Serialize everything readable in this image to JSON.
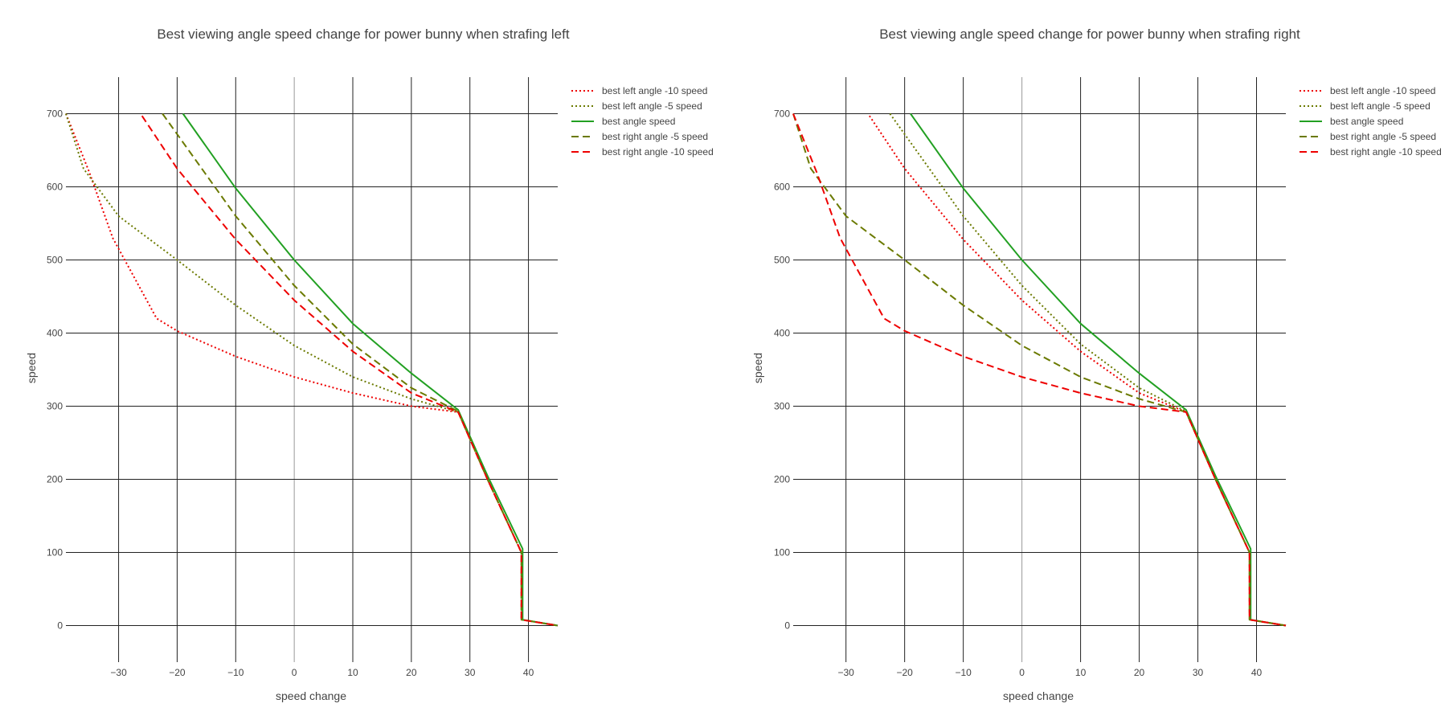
{
  "chart_data": [
    {
      "type": "line",
      "title": "Best viewing angle speed change for power bunny when strafing left",
      "xlabel": "speed change",
      "ylabel": "speed",
      "xlim": [
        -39,
        45
      ],
      "ylim": [
        -50,
        750
      ],
      "xticks": [
        -30,
        -20,
        -10,
        0,
        10,
        20,
        30,
        40
      ],
      "xtick_labels": [
        "−30",
        "−20",
        "−10",
        "0",
        "10",
        "20",
        "30",
        "40"
      ],
      "yticks": [
        0,
        100,
        200,
        300,
        400,
        500,
        600,
        700
      ],
      "ytick_labels": [
        "0",
        "100",
        "200",
        "300",
        "400",
        "500",
        "600",
        "700"
      ],
      "grid": true,
      "legend_position": "top-right",
      "series": [
        {
          "name": "best left angle -10 speed",
          "color": "#ee0000",
          "dash": "dot",
          "points": [
            [
              -39,
              700
            ],
            [
              -35,
              620
            ],
            [
              -31,
              530
            ],
            [
              -23.5,
              420
            ],
            [
              -20,
              403
            ],
            [
              -10,
              368
            ],
            [
              0,
              340
            ],
            [
              10,
              318
            ],
            [
              20,
              300
            ],
            [
              28,
              292
            ],
            [
              33,
              200
            ],
            [
              38.8,
              100
            ],
            [
              38.8,
              8
            ],
            [
              45,
              0
            ]
          ]
        },
        {
          "name": "best left angle -5 speed",
          "color": "#6b7a00",
          "dash": "dot",
          "points": [
            [
              -39,
              700
            ],
            [
              -36,
              625
            ],
            [
              -30,
              560
            ],
            [
              -20,
              500
            ],
            [
              -10,
              438
            ],
            [
              0,
              383
            ],
            [
              10,
              340
            ],
            [
              20,
              310
            ],
            [
              28,
              292
            ],
            [
              33,
              200
            ],
            [
              38.8,
              100
            ],
            [
              38.8,
              8
            ],
            [
              45,
              0
            ]
          ]
        },
        {
          "name": "best angle speed",
          "color": "#22a022",
          "dash": "solid",
          "points": [
            [
              -19,
              700
            ],
            [
              -10,
              598
            ],
            [
              0,
              500
            ],
            [
              10,
              413
            ],
            [
              20,
              345
            ],
            [
              28,
              295
            ],
            [
              33,
              205
            ],
            [
              39,
              105
            ],
            [
              39,
              8
            ],
            [
              45,
              0
            ]
          ]
        },
        {
          "name": "best right angle -5 speed",
          "color": "#6b7a00",
          "dash": "dash",
          "points": [
            [
              -22.5,
              700
            ],
            [
              -10,
              560
            ],
            [
              0,
              465
            ],
            [
              10,
              385
            ],
            [
              20,
              325
            ],
            [
              28,
              293
            ],
            [
              33,
              200
            ],
            [
              38.8,
              100
            ],
            [
              38.8,
              8
            ],
            [
              45,
              0
            ]
          ]
        },
        {
          "name": "best right angle -10 speed",
          "color": "#ee0000",
          "dash": "dash",
          "points": [
            [
              -26,
              697
            ],
            [
              -20,
              625
            ],
            [
              -10,
              528
            ],
            [
              0,
              445
            ],
            [
              10,
              375
            ],
            [
              20,
              318
            ],
            [
              28,
              292
            ],
            [
              33,
              200
            ],
            [
              38.8,
              100
            ],
            [
              38.8,
              8
            ],
            [
              45,
              0
            ]
          ]
        }
      ]
    },
    {
      "type": "line",
      "title": "Best viewing angle speed change for power bunny when strafing right",
      "xlabel": "speed change",
      "ylabel": "speed",
      "xlim": [
        -39,
        45
      ],
      "ylim": [
        -50,
        750
      ],
      "xticks": [
        -30,
        -20,
        -10,
        0,
        10,
        20,
        30,
        40
      ],
      "xtick_labels": [
        "−30",
        "−20",
        "−10",
        "0",
        "10",
        "20",
        "30",
        "40"
      ],
      "yticks": [
        0,
        100,
        200,
        300,
        400,
        500,
        600,
        700
      ],
      "ytick_labels": [
        "0",
        "100",
        "200",
        "300",
        "400",
        "500",
        "600",
        "700"
      ],
      "grid": true,
      "legend_position": "top-right",
      "series": [
        {
          "name": "best left angle -10 speed",
          "color": "#ee0000",
          "dash": "dot",
          "points": [
            [
              -26,
              697
            ],
            [
              -20,
              625
            ],
            [
              -10,
              528
            ],
            [
              0,
              445
            ],
            [
              10,
              375
            ],
            [
              20,
              318
            ],
            [
              28,
              292
            ],
            [
              33,
              200
            ],
            [
              38.8,
              100
            ],
            [
              38.8,
              8
            ],
            [
              45,
              0
            ]
          ]
        },
        {
          "name": "best left angle -5 speed",
          "color": "#6b7a00",
          "dash": "dot",
          "points": [
            [
              -22.5,
              700
            ],
            [
              -10,
              560
            ],
            [
              0,
              465
            ],
            [
              10,
              385
            ],
            [
              20,
              325
            ],
            [
              28,
              293
            ],
            [
              33,
              200
            ],
            [
              38.8,
              100
            ],
            [
              38.8,
              8
            ],
            [
              45,
              0
            ]
          ]
        },
        {
          "name": "best angle speed",
          "color": "#22a022",
          "dash": "solid",
          "points": [
            [
              -19,
              700
            ],
            [
              -10,
              598
            ],
            [
              0,
              500
            ],
            [
              10,
              413
            ],
            [
              20,
              345
            ],
            [
              28,
              295
            ],
            [
              33,
              205
            ],
            [
              39,
              105
            ],
            [
              39,
              8
            ],
            [
              45,
              0
            ]
          ]
        },
        {
          "name": "best right angle -5 speed",
          "color": "#6b7a00",
          "dash": "dash",
          "points": [
            [
              -39,
              700
            ],
            [
              -36,
              625
            ],
            [
              -30,
              560
            ],
            [
              -20,
              500
            ],
            [
              -10,
              438
            ],
            [
              0,
              383
            ],
            [
              10,
              340
            ],
            [
              20,
              310
            ],
            [
              28,
              292
            ],
            [
              33,
              200
            ],
            [
              38.8,
              100
            ],
            [
              38.8,
              8
            ],
            [
              45,
              0
            ]
          ]
        },
        {
          "name": "best right angle -10 speed",
          "color": "#ee0000",
          "dash": "dash",
          "points": [
            [
              -39,
              700
            ],
            [
              -35,
              620
            ],
            [
              -31,
              530
            ],
            [
              -23.5,
              420
            ],
            [
              -20,
              403
            ],
            [
              -10,
              368
            ],
            [
              0,
              340
            ],
            [
              10,
              318
            ],
            [
              20,
              300
            ],
            [
              28,
              292
            ],
            [
              33,
              200
            ],
            [
              38.8,
              100
            ],
            [
              38.8,
              8
            ],
            [
              45,
              0
            ]
          ]
        }
      ]
    }
  ]
}
